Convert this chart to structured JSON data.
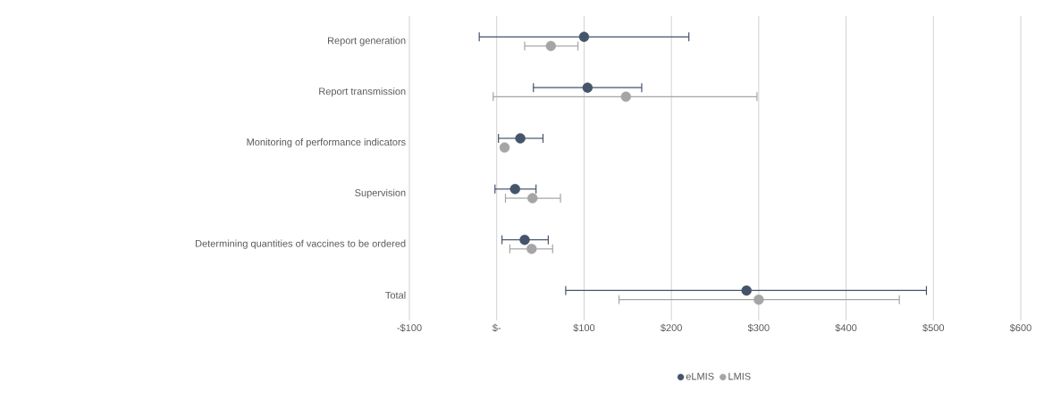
{
  "chart_data": {
    "type": "scatter",
    "orientation": "horizontal",
    "categories": [
      "Report generation",
      "Report transmission",
      "Monitoring of performance indicators",
      "Supervision",
      "Determining quantities of vaccines to be ordered",
      "Total"
    ],
    "series": [
      {
        "name": "eLMIS",
        "color": "#44546a",
        "values": [
          100,
          104,
          27,
          21,
          32,
          286
        ],
        "errors": [
          [
            -20,
            220
          ],
          [
            42,
            166
          ],
          [
            2,
            53
          ],
          [
            -2,
            45
          ],
          [
            6,
            59
          ],
          [
            79,
            492
          ]
        ]
      },
      {
        "name": "LMIS",
        "color": "#a5a5a5",
        "values": [
          62,
          148,
          9,
          41,
          40,
          300
        ],
        "errors": [
          [
            32,
            93
          ],
          [
            -4,
            298
          ],
          null,
          [
            10,
            73
          ],
          [
            15,
            64
          ],
          [
            140,
            461
          ]
        ]
      }
    ],
    "xlim": [
      -100,
      600
    ],
    "xticks": [
      {
        "value": -100,
        "label": "-$100"
      },
      {
        "value": 0,
        "label": "$-"
      },
      {
        "value": 100,
        "label": "$100"
      },
      {
        "value": 200,
        "label": "$200"
      },
      {
        "value": 300,
        "label": "$300"
      },
      {
        "value": 400,
        "label": "$400"
      },
      {
        "value": 500,
        "label": "$500"
      },
      {
        "value": 600,
        "label": "$600"
      }
    ],
    "grid": "x",
    "legend": "bottom",
    "marker": "circle"
  }
}
